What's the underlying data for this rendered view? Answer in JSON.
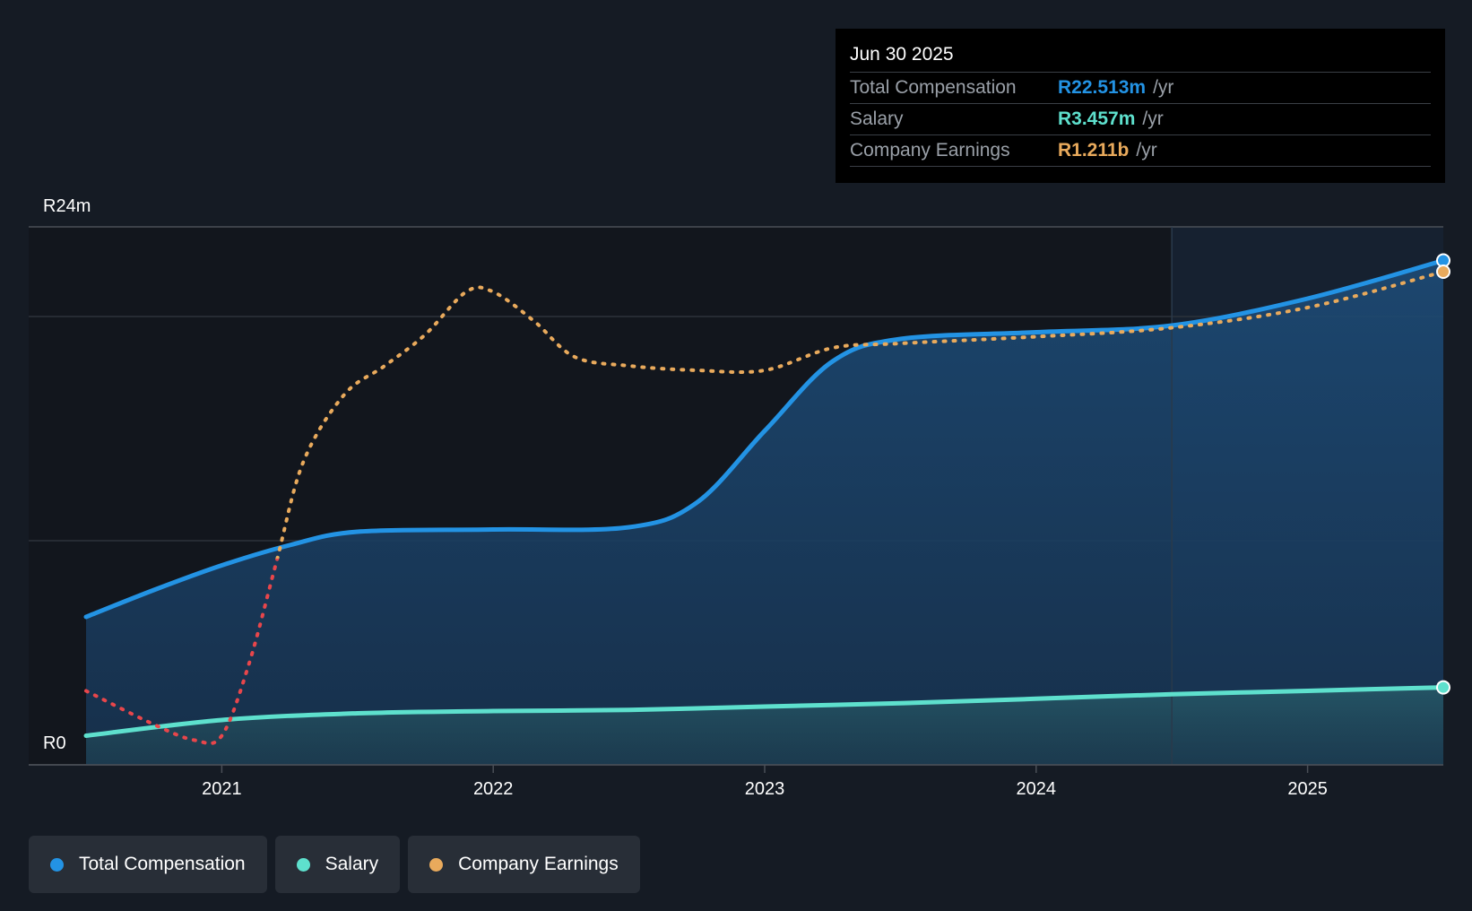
{
  "colors": {
    "background": "#151b24",
    "total_compensation": "#2393e4",
    "salary": "#5ee0cd",
    "company_earnings": "#e9aa5c",
    "earnings_negative": "#e8464b"
  },
  "tooltip": {
    "date": "Jun 30 2025",
    "rows": [
      {
        "label": "Total Compensation",
        "value": "R22.513m",
        "unit": "/yr"
      },
      {
        "label": "Salary",
        "value": "R3.457m",
        "unit": "/yr"
      },
      {
        "label": "Company Earnings",
        "value": "R1.211b",
        "unit": "/yr"
      }
    ]
  },
  "legend": {
    "items": [
      {
        "label": "Total Compensation"
      },
      {
        "label": "Salary"
      },
      {
        "label": "Company Earnings"
      }
    ]
  },
  "chart_data": {
    "type": "area",
    "title": "",
    "xlabel": "",
    "ylabel": "",
    "y_axis_labels": [
      "R24m",
      "R0"
    ],
    "ylim": [
      0,
      24
    ],
    "xlim": [
      2020.5,
      2025.5
    ],
    "x_tick_labels": [
      "2021",
      "2022",
      "2023",
      "2024",
      "2025"
    ],
    "x_ticks": [
      2021,
      2022,
      2023,
      2024,
      2025
    ],
    "gridlines_y": [
      0,
      10,
      20,
      24
    ],
    "forecast_start_x": 2024.5,
    "series": [
      {
        "name": "Total Compensation",
        "unit": "R m",
        "x": [
          2020.5,
          2020.75,
          2021.0,
          2021.25,
          2021.5,
          2022.0,
          2022.5,
          2022.75,
          2023.0,
          2023.25,
          2023.5,
          2024.0,
          2024.5,
          2025.0,
          2025.5
        ],
        "y": [
          6.6,
          7.8,
          8.9,
          9.8,
          10.4,
          10.5,
          10.6,
          11.7,
          14.9,
          18.0,
          19.0,
          19.3,
          19.6,
          20.8,
          22.5
        ]
      },
      {
        "name": "Salary",
        "unit": "R m",
        "x": [
          2020.5,
          2021.0,
          2021.5,
          2022.0,
          2022.5,
          2023.0,
          2023.5,
          2024.0,
          2024.5,
          2025.0,
          2025.5
        ],
        "y": [
          1.3,
          2.0,
          2.3,
          2.4,
          2.45,
          2.6,
          2.75,
          2.95,
          3.15,
          3.3,
          3.457
        ]
      },
      {
        "name": "Company Earnings",
        "unit": "scaled to chart axis",
        "x": [
          2020.5,
          2020.75,
          2020.9,
          2021.0,
          2021.1,
          2021.2,
          2021.3,
          2021.45,
          2021.6,
          2021.75,
          2021.9,
          2022.0,
          2022.15,
          2022.3,
          2022.5,
          2022.75,
          2023.0,
          2023.25,
          2023.5,
          2024.0,
          2024.5,
          2025.0,
          2025.5
        ],
        "y": [
          3.3,
          1.8,
          1.1,
          1.3,
          4.5,
          9.0,
          13.5,
          16.5,
          17.8,
          19.2,
          21.1,
          21.1,
          19.8,
          18.2,
          17.8,
          17.6,
          17.6,
          18.6,
          18.8,
          19.1,
          19.5,
          20.4,
          22.0
        ],
        "negative_below": 9.2
      }
    ]
  }
}
